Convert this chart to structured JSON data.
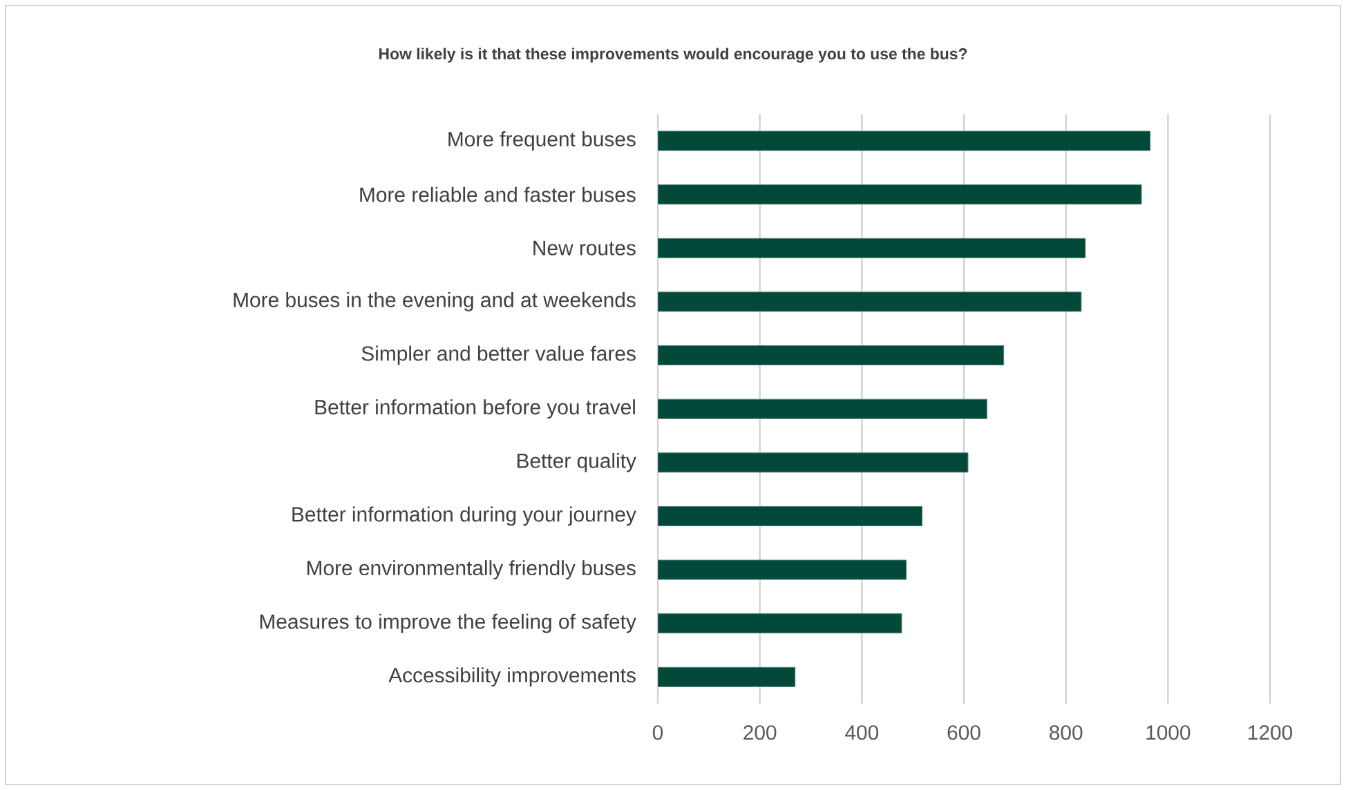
{
  "chart_data": {
    "type": "bar",
    "orientation": "horizontal",
    "title": "How likely is it that these improvements would encourage you to use the bus?",
    "categories": [
      "More frequent buses",
      "More reliable and faster buses",
      "New routes",
      "More buses in the evening and at weekends",
      "Simpler and better value fares",
      "Better information before you travel",
      "Better quality",
      "Better information during your journey",
      "More environmentally friendly buses",
      "Measures to improve the feeling of safety",
      "Accessibility improvements"
    ],
    "values": [
      965,
      948,
      838,
      830,
      678,
      645,
      608,
      518,
      487,
      478,
      269
    ],
    "color": "#03493a",
    "xlim": [
      0,
      1200
    ],
    "xticks": [
      0,
      200,
      400,
      600,
      800,
      1000,
      1200
    ],
    "grid": "x"
  }
}
